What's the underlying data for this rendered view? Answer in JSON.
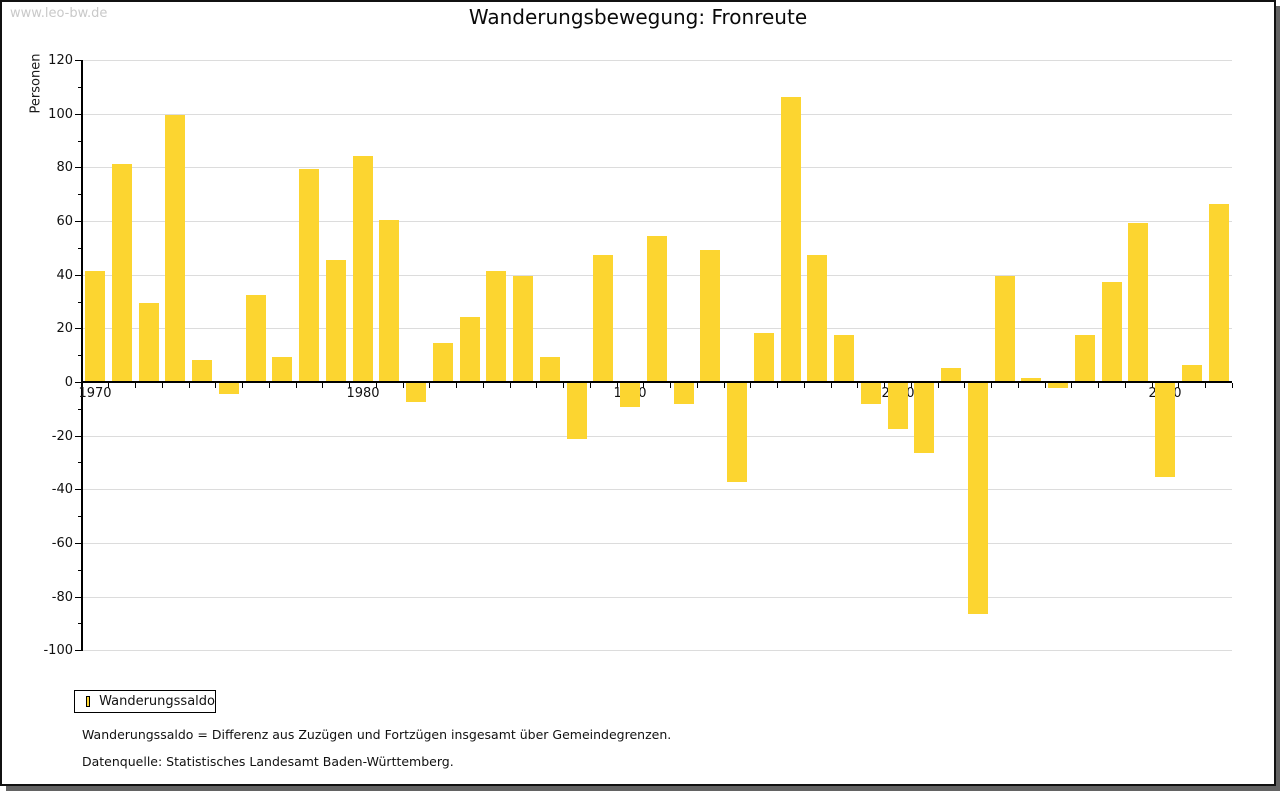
{
  "window": {
    "watermark": "www.leo-bw.de"
  },
  "chart_data": {
    "type": "bar",
    "title": "Wanderungsbewegung: Fronreute",
    "ylabel": "Personen",
    "xlabel": "",
    "ylim": [
      -100,
      120
    ],
    "y_tick_step": 20,
    "y_minor_tick_step": 10,
    "x_tick_labels": [
      1970,
      1980,
      1990,
      2000,
      2010
    ],
    "grid": "horizontal",
    "legend_position": "bottom-left",
    "categories": [
      1970,
      1971,
      1972,
      1973,
      1974,
      1975,
      1976,
      1977,
      1978,
      1979,
      1980,
      1981,
      1982,
      1983,
      1984,
      1985,
      1986,
      1987,
      1988,
      1989,
      1990,
      1991,
      1992,
      1993,
      1994,
      1995,
      1996,
      1997,
      1998,
      1999,
      2000,
      2001,
      2002,
      2003,
      2004,
      2005,
      2006,
      2007,
      2008,
      2009,
      2010,
      2011,
      2012
    ],
    "series": [
      {
        "name": "Wanderungssaldo",
        "color": "#FCD530",
        "values": [
          41,
          81,
          29,
          99,
          8,
          -4,
          32,
          9,
          79,
          45,
          84,
          60,
          -7,
          14,
          24,
          41,
          39,
          9,
          -21,
          47,
          -9,
          54,
          -8,
          49,
          -37,
          18,
          106,
          47,
          17,
          -8,
          -17,
          -26,
          5,
          -86,
          39,
          1,
          -2,
          17,
          37,
          59,
          -35,
          6,
          66
        ]
      }
    ]
  },
  "legend": {
    "entries": [
      {
        "label": "Wanderungssaldo",
        "color": "#FCD530"
      }
    ]
  },
  "notes": {
    "definition": "Wanderungssaldo = Differenz aus Zuzügen und Fortzügen insgesamt über Gemeindegrenzen.",
    "source": "Datenquelle: Statistisches Landesamt Baden-Württemberg."
  },
  "colors": {
    "bar": "#FCD530",
    "gridline": "#dcdcdc",
    "axis": "#000000",
    "watermark": "#c9c9c9",
    "frame_shadow": "#636363"
  }
}
